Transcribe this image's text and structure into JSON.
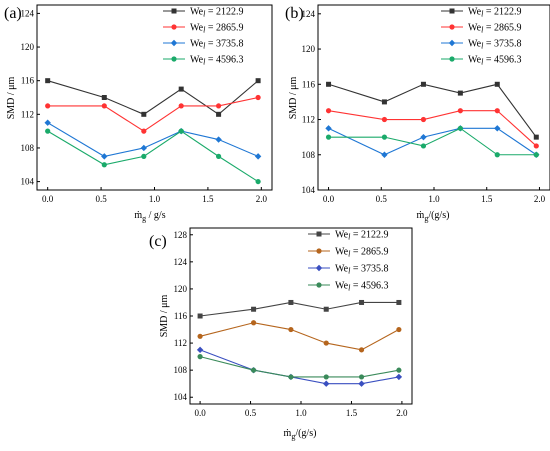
{
  "figure": {
    "panels": [
      {
        "label": "(a)",
        "x_label": "ṁg / g/s",
        "y_label": "SMD / μm"
      },
      {
        "label": "(b)",
        "x_label": "ṁg/(g/s)",
        "y_label": "SMD / μm"
      },
      {
        "label": "(c)",
        "x_label": "ṁg/(g/s)",
        "y_label": "SMD / μm"
      }
    ]
  },
  "chart_data": [
    {
      "type": "line",
      "title": "",
      "panel_label": "(a)",
      "xlabel": "ṁg / g/s",
      "ylabel": "SMD / μm",
      "xlim": [
        -0.1,
        2.1
      ],
      "ylim": [
        103,
        125
      ],
      "x_ticks": [
        "0.0",
        "0.5",
        "1.0",
        "1.5",
        "2.0"
      ],
      "y_ticks": [
        "104",
        "108",
        "112",
        "116",
        "120",
        "124"
      ],
      "legend_position": "top-right",
      "x": [
        0,
        0.53,
        0.9,
        1.25,
        1.6,
        1.97
      ],
      "series": [
        {
          "name": "Wel = 2122.9",
          "color": "#333333",
          "marker": "square",
          "values": [
            116,
            114,
            112,
            115,
            112,
            116
          ]
        },
        {
          "name": "Wel = 2865.9",
          "color": "#ff3333",
          "marker": "circle",
          "values": [
            113,
            113,
            110,
            113,
            113,
            114
          ]
        },
        {
          "name": "Wel = 3735.8",
          "color": "#1f77d4",
          "marker": "diamond",
          "values": [
            111,
            107,
            108,
            110,
            109,
            107
          ]
        },
        {
          "name": "Wel = 4596.3",
          "color": "#1aaa6a",
          "marker": "circle",
          "values": [
            110,
            106,
            107,
            110,
            107,
            104
          ]
        }
      ]
    },
    {
      "type": "line",
      "title": "",
      "panel_label": "(b)",
      "xlabel": "ṁg/(g/s)",
      "ylabel": "SMD / μm",
      "xlim": [
        -0.1,
        2.1
      ],
      "ylim": [
        104,
        125
      ],
      "x_ticks": [
        "0.0",
        "0.5",
        "1.0",
        "1.5",
        "2.0"
      ],
      "y_ticks": [
        "104",
        "108",
        "112",
        "116",
        "120",
        "124"
      ],
      "legend_position": "top-right",
      "x": [
        0,
        0.53,
        0.9,
        1.25,
        1.6,
        1.97
      ],
      "series": [
        {
          "name": "Wel = 2122.9",
          "color": "#333333",
          "marker": "square",
          "values": [
            116,
            114,
            116,
            115,
            116,
            110
          ]
        },
        {
          "name": "Wel = 2865.9",
          "color": "#ff3333",
          "marker": "circle",
          "values": [
            113,
            112,
            112,
            113,
            113,
            109
          ]
        },
        {
          "name": "Wel = 3735.8",
          "color": "#1f77d4",
          "marker": "diamond",
          "values": [
            111,
            108,
            110,
            111,
            111,
            108
          ]
        },
        {
          "name": "Wel = 4596.3",
          "color": "#1aaa6a",
          "marker": "circle",
          "values": [
            110,
            110,
            109,
            111,
            108,
            108
          ]
        }
      ]
    },
    {
      "type": "line",
      "title": "",
      "panel_label": "(c)",
      "xlabel": "ṁg/(g/s)",
      "ylabel": "SMD / μm",
      "xlim": [
        -0.1,
        2.1
      ],
      "ylim": [
        103,
        129
      ],
      "x_ticks": [
        "0.0",
        "0.5",
        "1.0",
        "1.5",
        "2.0"
      ],
      "y_ticks": [
        "104",
        "108",
        "112",
        "116",
        "120",
        "124",
        "128"
      ],
      "legend_position": "top-right",
      "x": [
        0,
        0.53,
        0.9,
        1.25,
        1.6,
        1.97
      ],
      "series": [
        {
          "name": "Wel = 2122.9",
          "color": "#444444",
          "marker": "square",
          "values": [
            116,
            117,
            118,
            117,
            118,
            118
          ]
        },
        {
          "name": "Wel = 2865.9",
          "color": "#b5651d",
          "marker": "circle",
          "values": [
            113,
            115,
            114,
            112,
            111,
            114
          ]
        },
        {
          "name": "Wel = 3735.8",
          "color": "#3a4fc0",
          "marker": "diamond",
          "values": [
            111,
            108,
            107,
            106,
            106,
            107
          ]
        },
        {
          "name": "Wel = 4596.3",
          "color": "#3a8a5a",
          "marker": "circle",
          "values": [
            110,
            108,
            107,
            107,
            107,
            108
          ]
        }
      ]
    }
  ]
}
